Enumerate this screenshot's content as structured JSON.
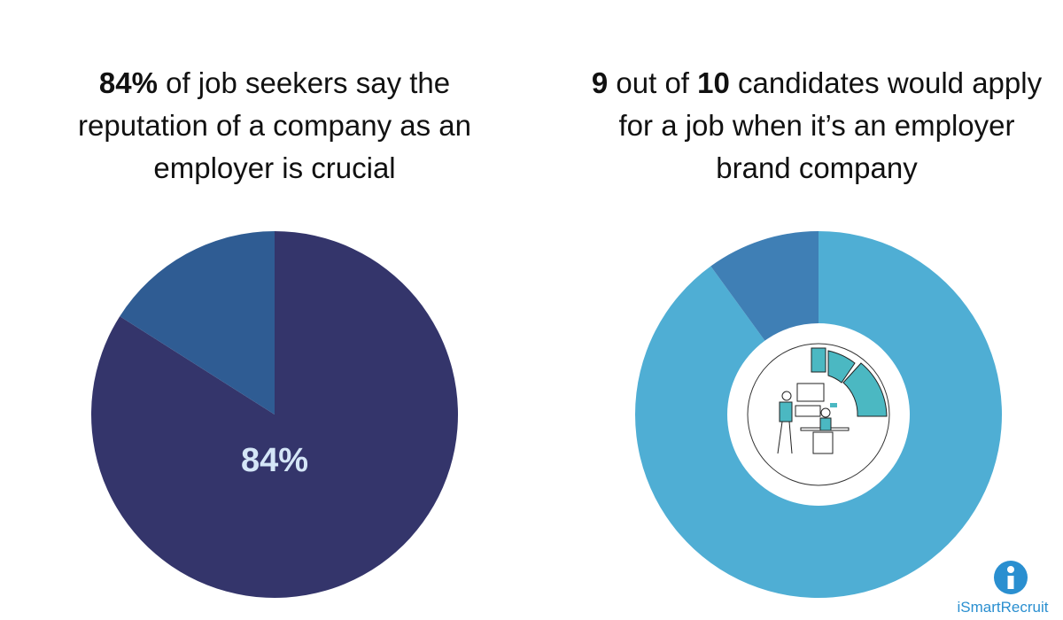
{
  "chart_data": [
    {
      "type": "pie",
      "title": [
        {
          "text": "84%",
          "bold": true
        },
        {
          "text": " of job seekers say the reputation of a company as an employer is crucial",
          "bold": false
        }
      ],
      "values": [
        84,
        16
      ],
      "value_labels": [
        "84%",
        null
      ],
      "colors": [
        "#34356b",
        "#2f5c93"
      ],
      "label_color": "#d4e6f7"
    },
    {
      "type": "donut",
      "title": [
        {
          "text": "9",
          "bold": true
        },
        {
          "text": " out of ",
          "bold": false
        },
        {
          "text": "10",
          "bold": true
        },
        {
          "text": " candidates would apply for a job when it’s an employer brand company",
          "bold": false
        }
      ],
      "values": [
        9,
        1
      ],
      "colors": [
        "#4faed4",
        "#3f7fb5"
      ]
    }
  ],
  "logo": "iSmartRecruit"
}
